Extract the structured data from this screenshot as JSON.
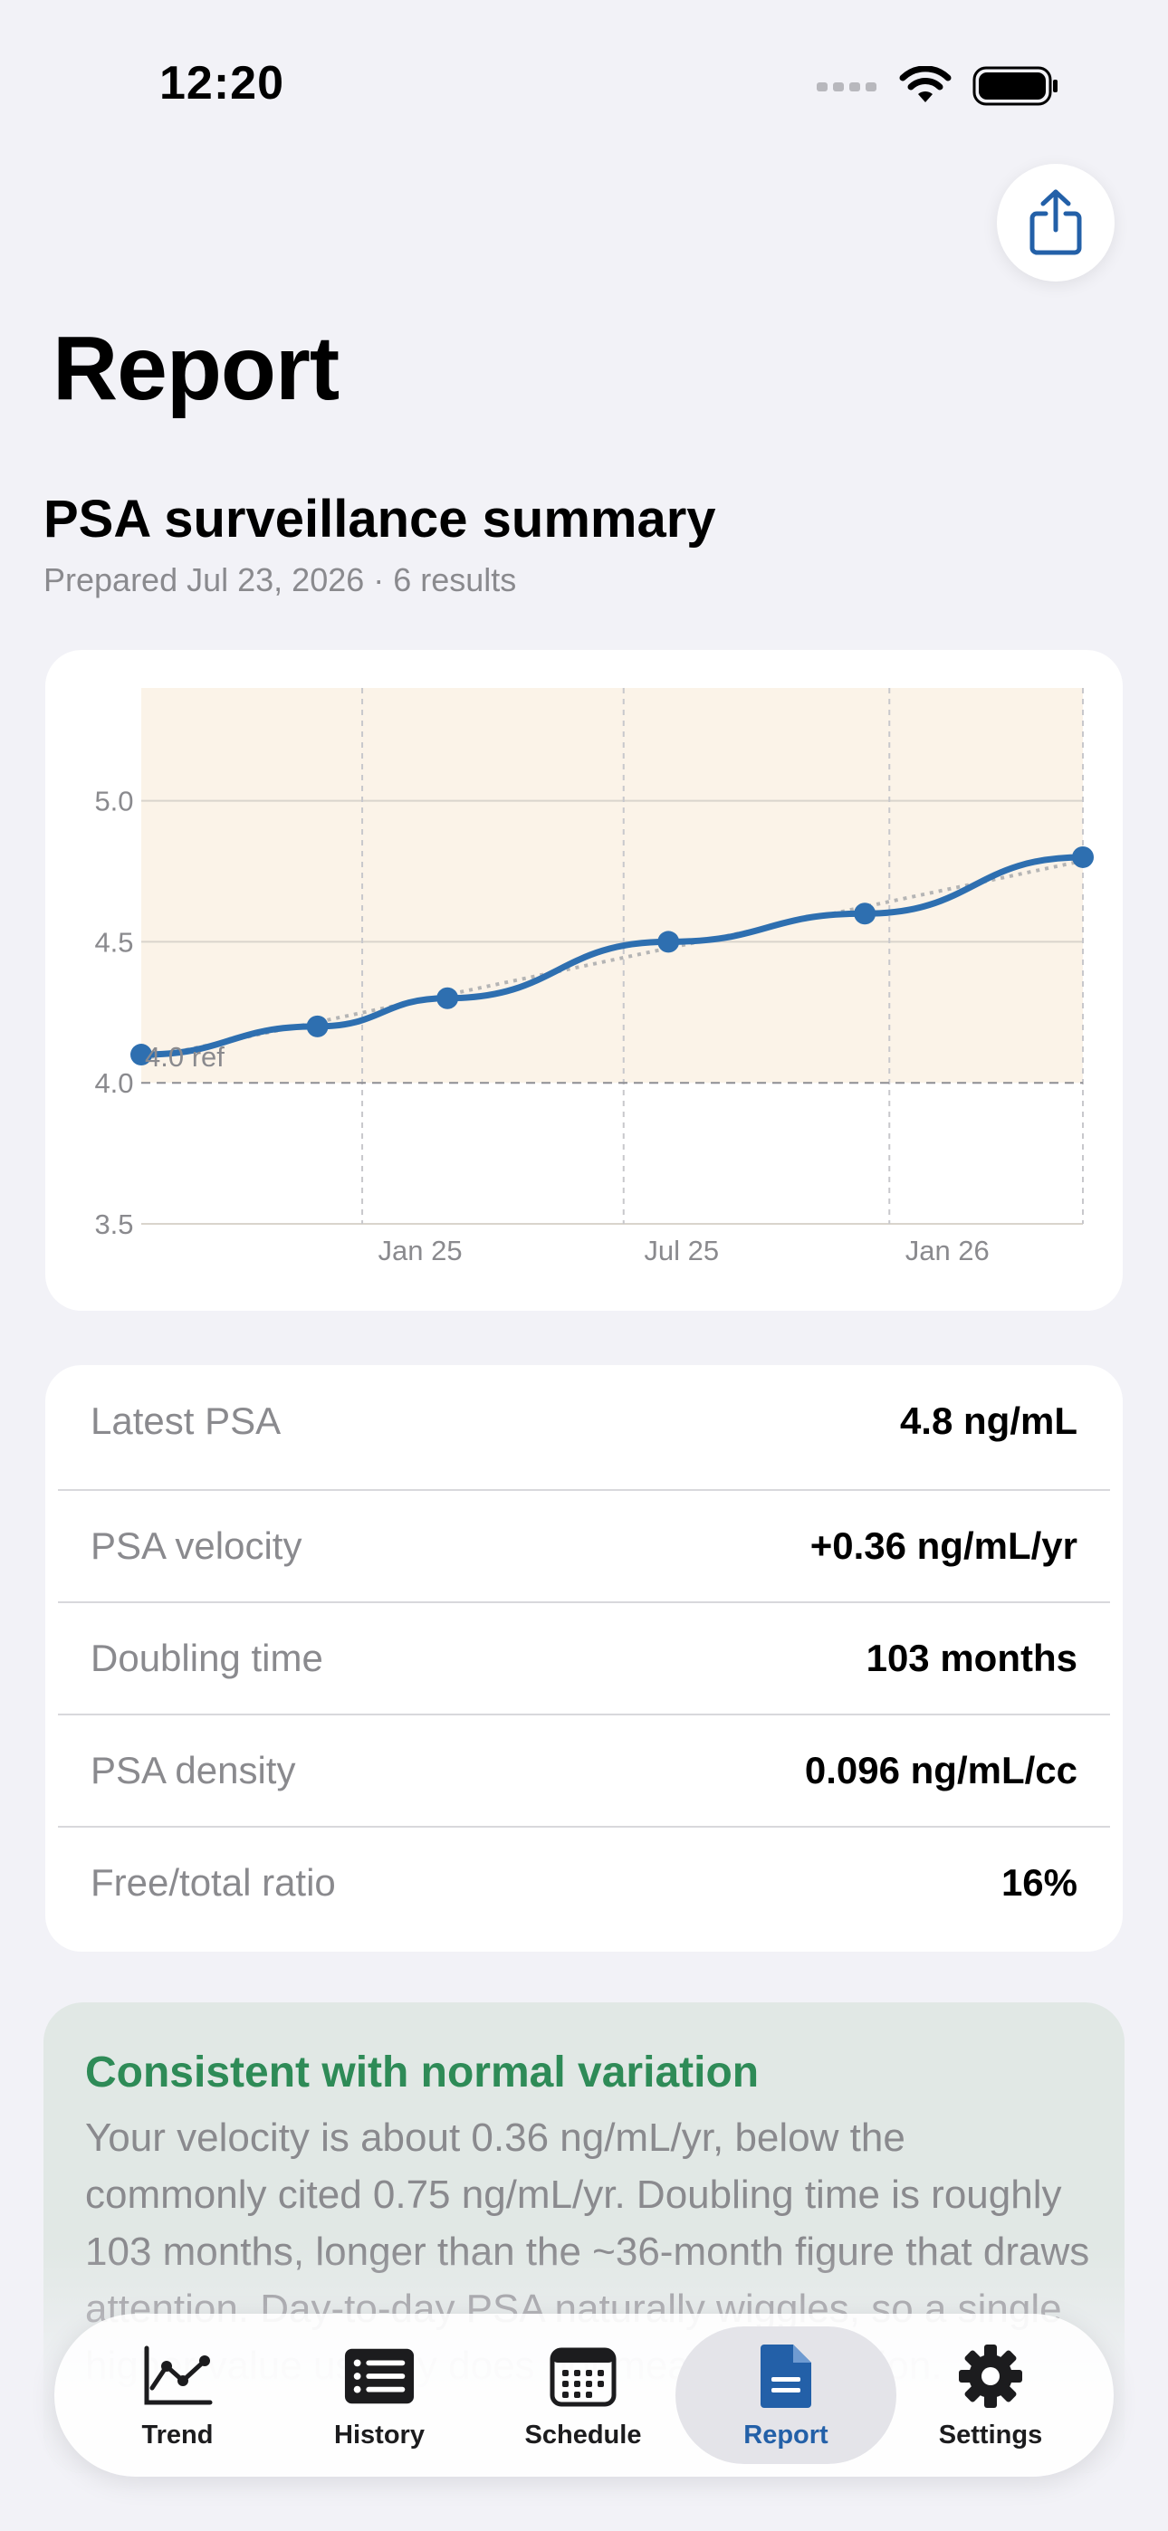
{
  "status_bar": {
    "time": "12:20"
  },
  "header": {
    "title": "Report",
    "share_icon": "share-icon"
  },
  "summary": {
    "title": "PSA surveillance summary",
    "subtitle": "Prepared Jul 23, 2026 · 6 results"
  },
  "chart_data": {
    "type": "line",
    "x": [
      "2024-08-01",
      "2024-12-01",
      "2025-03-01",
      "2025-08-01",
      "2025-12-15",
      "2026-05-15"
    ],
    "series": [
      {
        "values": [
          4.1,
          4.2,
          4.3,
          4.5,
          4.6,
          4.8
        ],
        "color": "#2e6fb0"
      }
    ],
    "trend_line": {
      "style": "dotted",
      "color": "#b5b5b5"
    },
    "reference_line": {
      "value": 4.0,
      "label": "4.0 ref",
      "style": "dashed"
    },
    "shaded_band": {
      "from": 4.0,
      "to": 5.4,
      "color": "#fbf3e8"
    },
    "yticks": [
      "5.0",
      "4.5",
      "4.0",
      "3.5"
    ],
    "ylim": [
      3.5,
      5.4
    ],
    "xticks": [
      "Jan 25",
      "Jul 25",
      "Jan 26"
    ],
    "grid": true
  },
  "metrics": [
    {
      "label": "Latest PSA",
      "value": "4.8 ng/mL"
    },
    {
      "label": "PSA velocity",
      "value": "+0.36 ng/mL/yr"
    },
    {
      "label": "Doubling time",
      "value": "103 months"
    },
    {
      "label": "PSA density",
      "value": "0.096 ng/mL/cc"
    },
    {
      "label": "Free/total ratio",
      "value": "16%"
    }
  ],
  "note": {
    "title": "Consistent with normal variation",
    "body": "Your velocity is about 0.36 ng/mL/yr, below the commonly cited 0.75 ng/mL/yr. Doubling time is roughly 103 months, longer than the ~36-month figure that draws attention. Day-to-day PSA naturally wiggles, so a single higher value usually does not mean progression.",
    "title_color": "#2e8b57"
  },
  "tabs": [
    {
      "label": "Trend",
      "icon": "chart-line-icon"
    },
    {
      "label": "History",
      "icon": "list-icon"
    },
    {
      "label": "Schedule",
      "icon": "calendar-icon"
    },
    {
      "label": "Report",
      "icon": "document-icon",
      "active": true
    },
    {
      "label": "Settings",
      "icon": "gear-icon"
    }
  ],
  "colors": {
    "accent": "#2360a8",
    "line": "#2e6fb0",
    "band": "#fbf3e8"
  }
}
